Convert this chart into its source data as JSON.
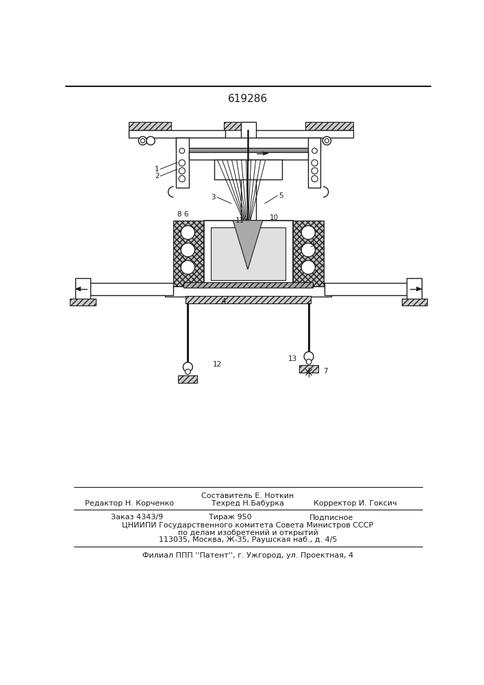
{
  "patent_number": "619286",
  "background_color": "#ffffff",
  "line_color": "#1a1a1a",
  "footer_text_1": "Составитель Е. Ноткин",
  "footer_text_2_left": "Редактор Н. Корченко",
  "footer_text_2_mid": "Техред Н.Бабурка",
  "footer_text_2_right": "Корректор И. Гоксич",
  "footer_text_3_a": "Заказ 4343/9",
  "footer_text_3_b": "Тираж 950",
  "footer_text_3_c": "Подписное",
  "footer_text_4": "ЦНИИПИ Государственного комитета Совета Министров СССР",
  "footer_text_5": "по делам изобретений и открытий",
  "footer_text_6": "113035, Москва, Ж-35, Раушская наб., д. 4/5",
  "footer_text_7": "Филиал ППП ''Патент'', г. Ужгород, ул. Проектная, 4"
}
